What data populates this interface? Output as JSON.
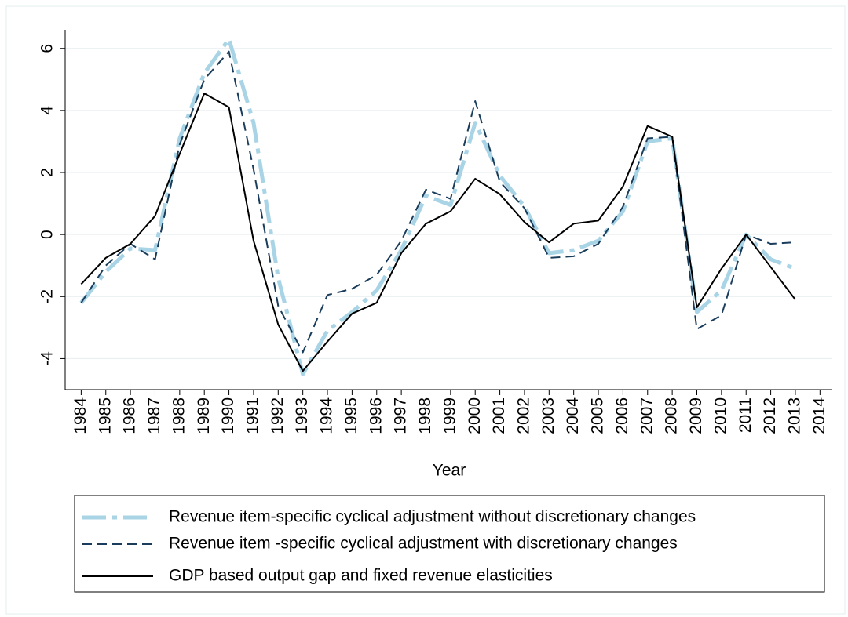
{
  "chart_data": {
    "type": "line",
    "x_label": "Year",
    "x": [
      1984,
      1985,
      1986,
      1987,
      1988,
      1989,
      1990,
      1991,
      1992,
      1993,
      1994,
      1995,
      1996,
      1997,
      1998,
      1999,
      2000,
      2001,
      2002,
      2003,
      2004,
      2005,
      2006,
      2007,
      2008,
      2009,
      2010,
      2011,
      2012,
      2013
    ],
    "series": [
      {
        "name": "Revenue item-specific cyclical adjustment without discretionary changes",
        "color": "#a8d4e6",
        "style": "longdash-dot",
        "values": [
          -2.2,
          -1.2,
          -0.45,
          -0.5,
          3.1,
          5.2,
          6.3,
          3.6,
          -1.4,
          -4.5,
          -3.1,
          -2.5,
          -1.8,
          -0.5,
          1.25,
          0.95,
          3.6,
          1.9,
          0.9,
          -0.6,
          -0.5,
          -0.2,
          0.75,
          3.0,
          3.1,
          -2.5,
          -1.8,
          0,
          -0.8,
          -1.1
        ]
      },
      {
        "name": "Revenue item -specific cyclical adjustment with discretionary changes",
        "color": "#1a3d5c",
        "style": "dash",
        "values": [
          -2.2,
          -1.0,
          -0.3,
          -0.8,
          2.9,
          5.0,
          5.9,
          2.1,
          -2.3,
          -3.8,
          -1.95,
          -1.75,
          -1.3,
          -0.2,
          1.45,
          1.15,
          4.3,
          1.7,
          0.85,
          -0.75,
          -0.7,
          -0.3,
          0.9,
          3.1,
          3.15,
          -3.05,
          -2.6,
          0,
          -0.3,
          -0.25
        ]
      },
      {
        "name": "GDP based output gap and fixed revenue elasticities",
        "color": "#000000",
        "style": "solid",
        "values": [
          -1.6,
          -0.75,
          -0.3,
          0.6,
          2.6,
          4.55,
          4.1,
          -0.2,
          -2.9,
          -4.4,
          -3.45,
          -2.55,
          -2.2,
          -0.6,
          0.35,
          0.75,
          1.8,
          1.3,
          0.4,
          -0.25,
          0.35,
          0.45,
          1.55,
          3.5,
          3.15,
          -2.35,
          -1.1,
          0,
          -1.05,
          -2.1
        ]
      }
    ],
    "xlim": [
      1983.35,
      2014.5
    ],
    "xticks": [
      1984,
      1985,
      1986,
      1987,
      1988,
      1989,
      1990,
      1991,
      1992,
      1993,
      1994,
      1995,
      1996,
      1997,
      1998,
      1999,
      2000,
      2001,
      2002,
      2003,
      2004,
      2005,
      2006,
      2007,
      2008,
      2009,
      2010,
      2011,
      2012,
      2013,
      2014
    ],
    "ylim": [
      -5,
      6.6
    ],
    "yticks": [
      -4,
      -2,
      0,
      2,
      4,
      6
    ],
    "grid": true,
    "legend": "bottom"
  }
}
